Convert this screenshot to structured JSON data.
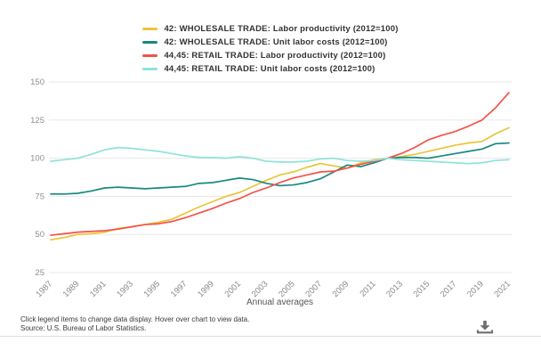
{
  "chart_data": {
    "type": "line",
    "title": "",
    "xlabel": "Annual averages",
    "ylabel": "",
    "ylim": [
      25,
      150
    ],
    "yticks": [
      25,
      50,
      75,
      100,
      125,
      150
    ],
    "grid": true,
    "legend_position": "top",
    "x": [
      1987,
      1988,
      1989,
      1990,
      1991,
      1992,
      1993,
      1994,
      1995,
      1996,
      1997,
      1998,
      1999,
      2000,
      2001,
      2002,
      2003,
      2004,
      2005,
      2006,
      2007,
      2008,
      2009,
      2010,
      2011,
      2012,
      2013,
      2014,
      2015,
      2016,
      2017,
      2018,
      2019,
      2020,
      2021
    ],
    "xtick_years": [
      1987,
      1989,
      1991,
      1993,
      1995,
      1997,
      1999,
      2001,
      2003,
      2005,
      2007,
      2009,
      2011,
      2013,
      2015,
      2017,
      2019,
      2021
    ],
    "series": [
      {
        "name": "42: WHOLESALE TRADE: Labor productivity (2012=100)",
        "color": "#e9c53c",
        "values": [
          46.5,
          48,
          50,
          50.5,
          51.5,
          54,
          55,
          56.5,
          58,
          60,
          64,
          68,
          71.5,
          75,
          77.5,
          81.5,
          85.5,
          89,
          91,
          94,
          96.5,
          95,
          93.5,
          97,
          99,
          100,
          101,
          102.5,
          104.5,
          106.5,
          108.5,
          110,
          111,
          116,
          120
        ]
      },
      {
        "name": "42: WHOLESALE TRADE: Unit labor costs (2012=100)",
        "color": "#18897f",
        "values": [
          76.5,
          76.5,
          77,
          78.5,
          80.5,
          81,
          80.5,
          80,
          80.5,
          81,
          81.5,
          83.5,
          84,
          85.5,
          87,
          86,
          83.5,
          82,
          82.5,
          84,
          86.5,
          91,
          95.5,
          94.5,
          97,
          100,
          100.5,
          100.5,
          100,
          101.5,
          103,
          104.5,
          106,
          109.5,
          110
        ]
      },
      {
        "name": "44,45: RETAIL TRADE: Labor productivity (2012=100)",
        "color": "#f4514a",
        "values": [
          49.5,
          50.5,
          51.5,
          52,
          52.5,
          53.5,
          55,
          56.5,
          57,
          58.5,
          61,
          64,
          67,
          70.5,
          73.5,
          77.5,
          80.5,
          84,
          87,
          89,
          91,
          91.5,
          93.5,
          96,
          98,
          100,
          103,
          107,
          112,
          115,
          117.5,
          121,
          125,
          133,
          143
        ]
      },
      {
        "name": "44,45: RETAIL TRADE: Unit labor costs (2012=100)",
        "color": "#8fe2da",
        "values": [
          98,
          99,
          100,
          102.5,
          105.5,
          107,
          106.5,
          105.5,
          104.5,
          103,
          101.5,
          100.5,
          100.5,
          100,
          101,
          100,
          98,
          97.5,
          97.5,
          98,
          99.5,
          100,
          98.5,
          98,
          98.5,
          100,
          99,
          98.5,
          98,
          97.5,
          97,
          96.5,
          97,
          98.5,
          99
        ]
      }
    ]
  },
  "footer": {
    "line1": "Click legend items to change data display. Hover over chart to view data.",
    "line2": "Source: U.S. Bureau of Labor Statistics."
  },
  "icons": {
    "download": "download-icon"
  }
}
